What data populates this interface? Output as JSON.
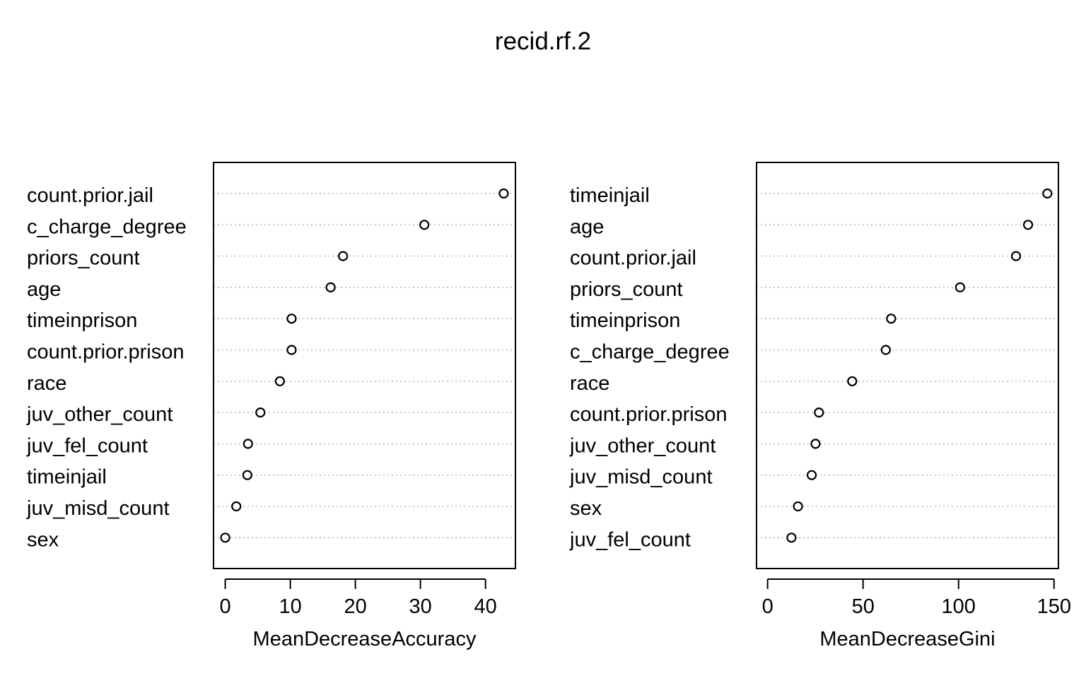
{
  "title": "recid.rf.2",
  "chart_data": [
    {
      "type": "scatter",
      "xlabel": "MeanDecreaseAccuracy",
      "xlim": [
        -1.8,
        44.6
      ],
      "xticks": [
        0,
        10,
        20,
        30,
        40
      ],
      "grid": "horizontal dotted",
      "categories": [
        "count.prior.jail",
        "c_charge_degree",
        "priors_count",
        "age",
        "timeinprison",
        "count.prior.prison",
        "race",
        "juv_other_count",
        "juv_fel_count",
        "timeinjail",
        "juv_misd_count",
        "sex"
      ],
      "values": [
        42.8,
        30.6,
        18.1,
        16.2,
        10.2,
        10.2,
        8.4,
        5.4,
        3.5,
        3.4,
        1.7,
        0.0
      ]
    },
    {
      "type": "scatter",
      "xlabel": "MeanDecreaseGini",
      "xlim": [
        -5.8,
        152.3
      ],
      "xticks": [
        0,
        50,
        100,
        150
      ],
      "grid": "horizontal dotted",
      "categories": [
        "timeinjail",
        "age",
        "count.prior.jail",
        "priors_count",
        "timeinprison",
        "c_charge_degree",
        "race",
        "count.prior.prison",
        "juv_other_count",
        "juv_misd_count",
        "sex",
        "juv_fel_count"
      ],
      "values": [
        146.5,
        136.4,
        130.1,
        100.8,
        64.7,
        61.9,
        44.3,
        26.9,
        25.1,
        23.1,
        15.9,
        12.5
      ]
    }
  ]
}
